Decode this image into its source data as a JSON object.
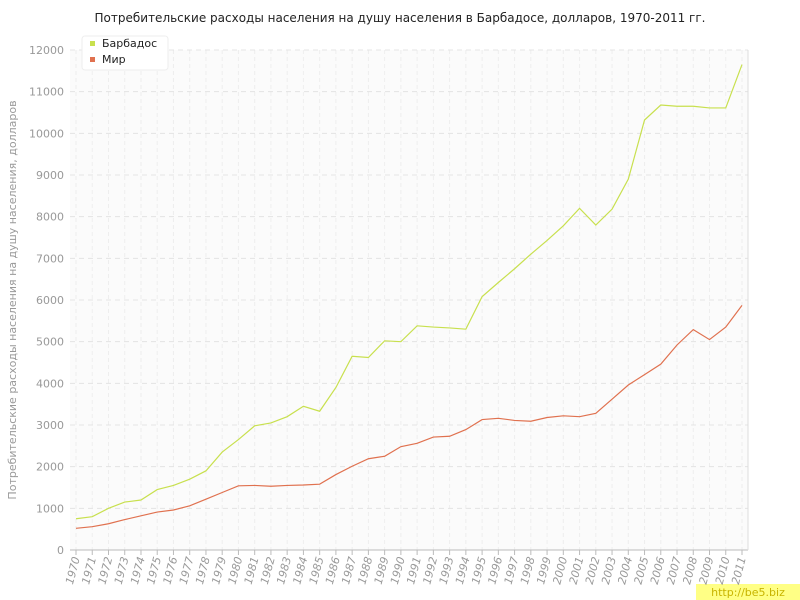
{
  "chart_data": {
    "type": "line",
    "title": "Потребительские расходы населения на душу населения в Барбадосе, долларов, 1970-2011 гг.",
    "y_label": "Потребительские расходы населения на душу населения, долларов",
    "categories": [
      "1970",
      "1971",
      "1972",
      "1973",
      "1974",
      "1975",
      "1976",
      "1977",
      "1978",
      "1979",
      "1980",
      "1981",
      "1982",
      "1983",
      "1984",
      "1985",
      "1986",
      "1987",
      "1988",
      "1989",
      "1990",
      "1991",
      "1992",
      "1993",
      "1994",
      "1995",
      "1996",
      "1997",
      "1998",
      "1999",
      "2000",
      "2001",
      "2002",
      "2003",
      "2004",
      "2005",
      "2006",
      "2007",
      "2008",
      "2009",
      "2010",
      "2011"
    ],
    "series": [
      {
        "name": "Барбадос",
        "color": "#c8e04e",
        "values": [
          750,
          800,
          1000,
          1150,
          1200,
          1450,
          1550,
          1700,
          1900,
          2350,
          2650,
          2980,
          3050,
          3200,
          3450,
          3330,
          3900,
          4650,
          4620,
          5020,
          5000,
          5380,
          5350,
          5330,
          5300,
          6080,
          6420,
          6750,
          7100,
          7430,
          7780,
          8200,
          7800,
          8180,
          8900,
          10320,
          10680,
          10650,
          10650,
          10610,
          10610,
          11650
        ]
      },
      {
        "name": "Мир",
        "color": "#e0714f",
        "values": [
          520,
          560,
          630,
          730,
          820,
          910,
          960,
          1060,
          1220,
          1380,
          1540,
          1550,
          1530,
          1550,
          1560,
          1580,
          1810,
          2010,
          2190,
          2250,
          2480,
          2560,
          2710,
          2730,
          2890,
          3130,
          3160,
          3110,
          3090,
          3180,
          3220,
          3200,
          3280,
          3620,
          3960,
          4210,
          4460,
          4920,
          5290,
          5050,
          5350,
          5870
        ]
      }
    ],
    "ylim": [
      0,
      12000
    ],
    "yticks": [
      0,
      1000,
      2000,
      3000,
      4000,
      5000,
      6000,
      7000,
      8000,
      9000,
      10000,
      11000,
      12000
    ],
    "grid": true,
    "legend": "top-left",
    "watermark": "http://be5.biz"
  }
}
